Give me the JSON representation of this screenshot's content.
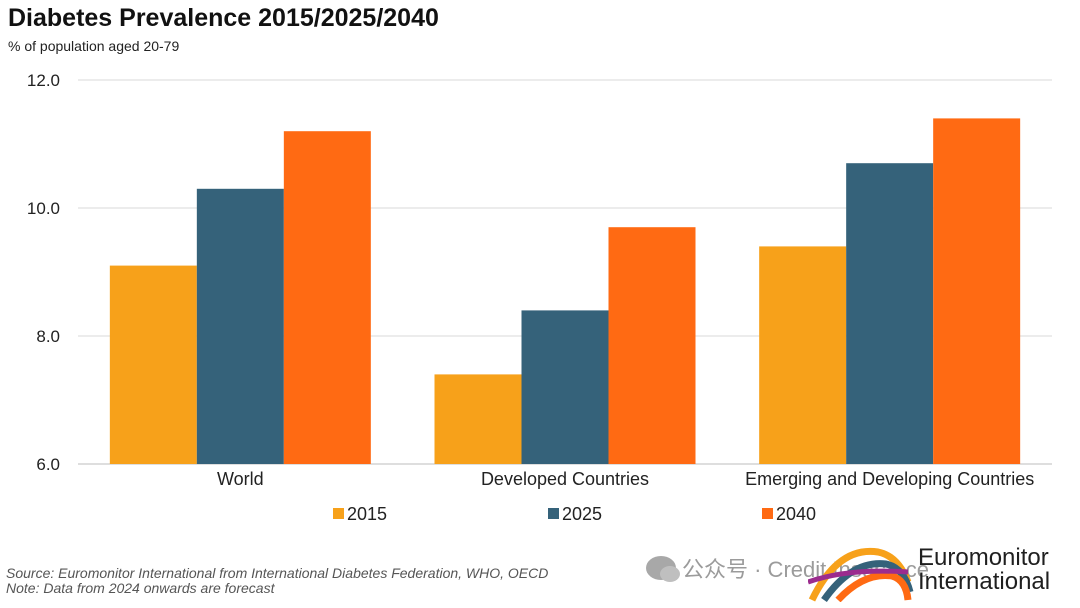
{
  "chart_data": {
    "type": "bar",
    "title": "Diabetes Prevalence 2015/2025/2040",
    "subtitle": "% of population aged 20-79",
    "categories": [
      "World",
      "Developed Countries",
      "Emerging and Developing Countries"
    ],
    "series": [
      {
        "name": "2015",
        "color": "#F7A11A",
        "values": [
          9.1,
          7.4,
          9.4
        ]
      },
      {
        "name": "2025",
        "color": "#35627A",
        "values": [
          10.3,
          8.4,
          10.7
        ]
      },
      {
        "name": "2040",
        "color": "#FF6A13",
        "values": [
          11.2,
          9.7,
          11.4
        ]
      }
    ],
    "ylim": [
      6.0,
      12.0
    ],
    "yticks": [
      "6.0",
      "8.0",
      "10.0",
      "12.0"
    ],
    "grid": true,
    "legend_position": "bottom"
  },
  "footer": {
    "source": "Source: Euromonitor International from International Diabetes Federation, WHO, OECD",
    "note": "Note: Data from 2024 onwards are forecast"
  },
  "watermark": {
    "text": "公众号 · Credit Insurance"
  },
  "logo": {
    "line1": "Euromonitor",
    "line2": "International"
  }
}
